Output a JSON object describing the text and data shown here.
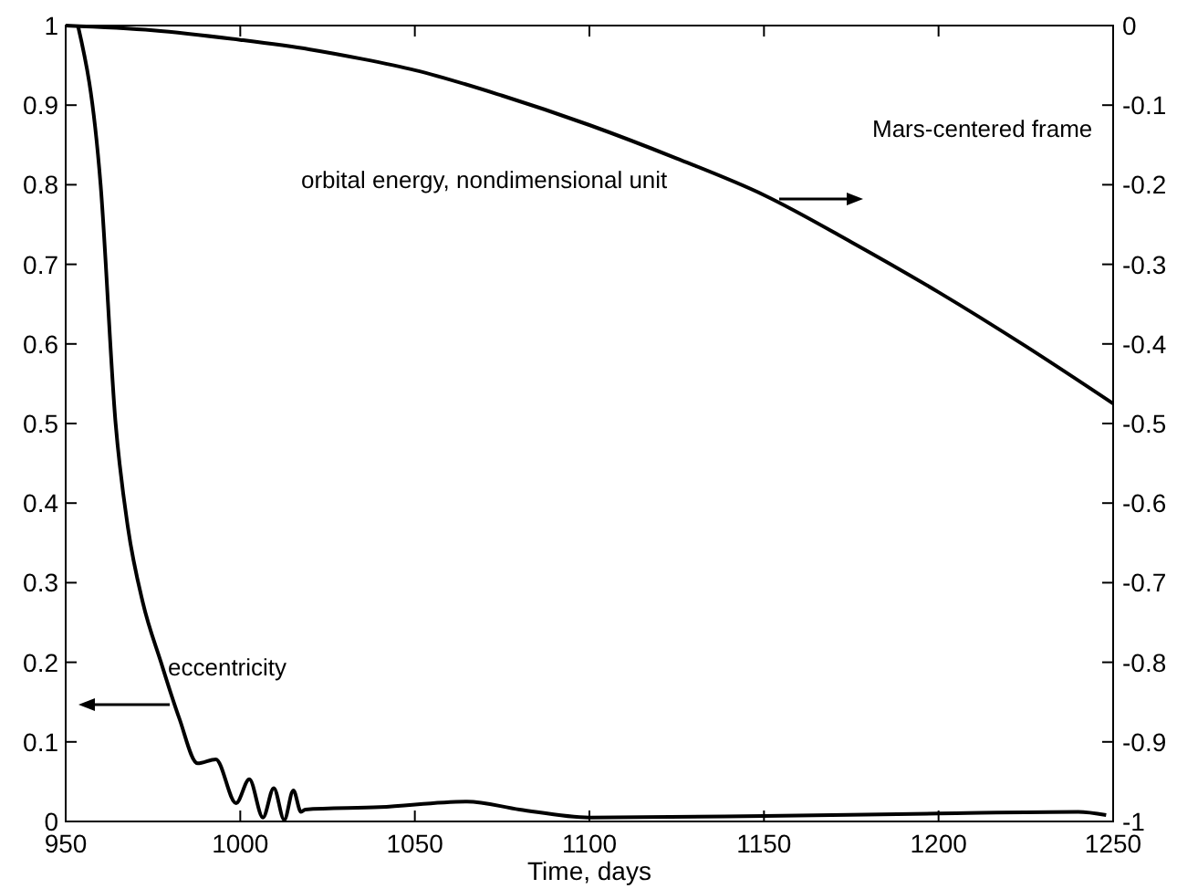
{
  "chart_data": {
    "type": "line",
    "xlabel": "Time, days",
    "annotations": [
      "Mars-centered frame",
      "orbital energy, nondimensional unit",
      "eccentricity"
    ],
    "xlim": [
      950,
      1250
    ],
    "xticks": [
      950,
      1000,
      1050,
      1100,
      1150,
      1200,
      1250
    ],
    "ylim": [
      0,
      1
    ],
    "yticks": [
      0,
      0.1,
      0.2,
      0.3,
      0.4,
      0.5,
      0.6,
      0.7,
      0.8,
      0.9,
      1
    ],
    "y2lim": [
      -1,
      0
    ],
    "y2ticks": [
      -1,
      -0.9,
      -0.8,
      -0.7,
      -0.6,
      -0.5,
      -0.4,
      -0.3,
      -0.2,
      -0.1,
      0
    ],
    "grid": false,
    "line_style": "solid",
    "marker": "none",
    "series": [
      {
        "color": "#000000",
        "x": [
          953.5,
          960,
          964.3,
          967.8,
          972.1,
          977.3,
          982.5,
          987.8,
          993,
          998.8,
          1002.6,
          1006.5,
          1009.6,
          1012.6,
          1015.2,
          1017.4,
          1018.6,
          1040,
          1065,
          1080,
          1100,
          1150,
          1200,
          1240,
          1248
        ],
        "values": [
          1,
          0.8,
          0.5,
          0.37,
          0.275,
          0.2,
          0.13,
          0.073,
          0.078,
          0.023,
          0.053,
          0.005,
          0.042,
          0.002,
          0.039,
          0.012,
          0.015,
          0.018,
          0.025,
          0.015,
          0.005,
          0.007,
          0.01,
          0.012,
          0.008
        ]
      },
      {
        "color": "#000000",
        "axis": "y2",
        "x": [
          950,
          975,
          1000,
          1020,
          1035,
          1050,
          1075,
          1100,
          1125,
          1150,
          1175,
          1200,
          1225,
          1250
        ],
        "values": [
          0,
          -0.006,
          -0.018,
          -0.03,
          -0.042,
          -0.056,
          -0.088,
          -0.125,
          -0.167,
          -0.213,
          -0.272,
          -0.335,
          -0.403,
          -0.475
        ]
      }
    ]
  }
}
